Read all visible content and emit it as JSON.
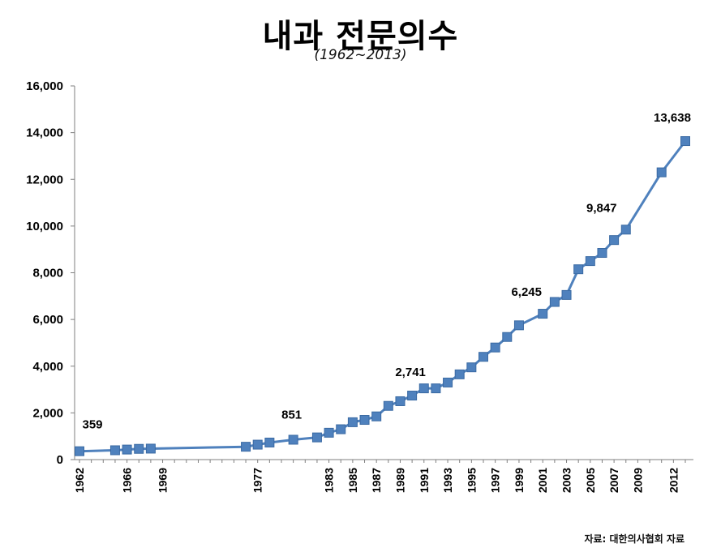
{
  "chart_data": {
    "type": "line",
    "title": "내과 전문의수",
    "subtitle": "(1962~2013)",
    "source": "자료: 대한의사협회 자료",
    "ylim": [
      0,
      16000
    ],
    "yticks": [
      0,
      2000,
      4000,
      6000,
      8000,
      10000,
      12000,
      14000,
      16000
    ],
    "ytick_labels": [
      "0",
      "2,000",
      "4,000",
      "6,000",
      "8,000",
      "10,000",
      "12,000",
      "14,000",
      "16,000"
    ],
    "xlim": [
      1962,
      2013
    ],
    "xtick_labels": [
      "1962",
      "1966",
      "1969",
      "1977",
      "1983",
      "1985",
      "1987",
      "1989",
      "1991",
      "1993",
      "1995",
      "1997",
      "1999",
      "2001",
      "2003",
      "2005",
      "2007",
      "2009",
      "2012"
    ],
    "grid": false,
    "legend": "none",
    "color": "#4f81bd",
    "series": [
      {
        "x": [
          1962,
          1965,
          1966,
          1967,
          1968,
          1976,
          1977,
          1978,
          1980,
          1982,
          1983,
          1984,
          1985,
          1986,
          1987,
          1988,
          1989,
          1990,
          1991,
          1992,
          1993,
          1994,
          1995,
          1996,
          1997,
          1998,
          1999,
          2001,
          2002,
          2003,
          2004,
          2005,
          2006,
          2007,
          2008,
          2011,
          2013
        ],
        "values": [
          359,
          400,
          430,
          460,
          470,
          550,
          640,
          730,
          851,
          950,
          1150,
          1300,
          1600,
          1700,
          1850,
          2300,
          2500,
          2741,
          3050,
          3050,
          3300,
          3650,
          3950,
          4400,
          4800,
          5250,
          5750,
          6245,
          6750,
          7050,
          8150,
          8500,
          8850,
          9400,
          9847,
          12300,
          13638
        ]
      }
    ],
    "annotations": [
      {
        "x": 1962,
        "y": 359,
        "text": "359"
      },
      {
        "x": 1980,
        "y": 851,
        "text": "851"
      },
      {
        "x": 1990,
        "y": 2741,
        "text": "2,741"
      },
      {
        "x": 2001,
        "y": 6245,
        "text": "6,245"
      },
      {
        "x": 2008,
        "y": 9847,
        "text": "9,847"
      },
      {
        "x": 2013,
        "y": 13638,
        "text": "13,638"
      }
    ]
  }
}
